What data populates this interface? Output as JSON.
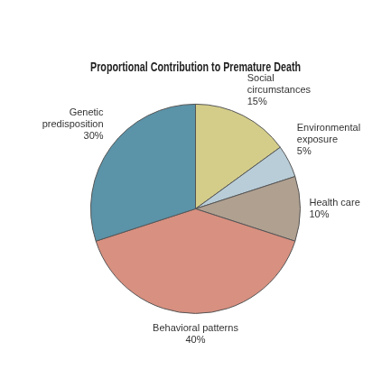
{
  "chart_data": {
    "type": "pie",
    "title": "Proportional Contribution to Premature Death",
    "categories": [
      "Social\ncircumstances",
      "Environmental\nexposure",
      "Health care",
      "Behavioral patterns",
      "Genetic\npredisposition"
    ],
    "values": [
      15,
      5,
      10,
      40,
      30
    ],
    "value_labels": [
      "15%",
      "5%",
      "10%",
      "40%",
      "30%"
    ],
    "colors": [
      "#d4cd8a",
      "#b8cdd8",
      "#b0a090",
      "#d89080",
      "#5b93a8"
    ],
    "data_labels": true,
    "legend": false
  }
}
